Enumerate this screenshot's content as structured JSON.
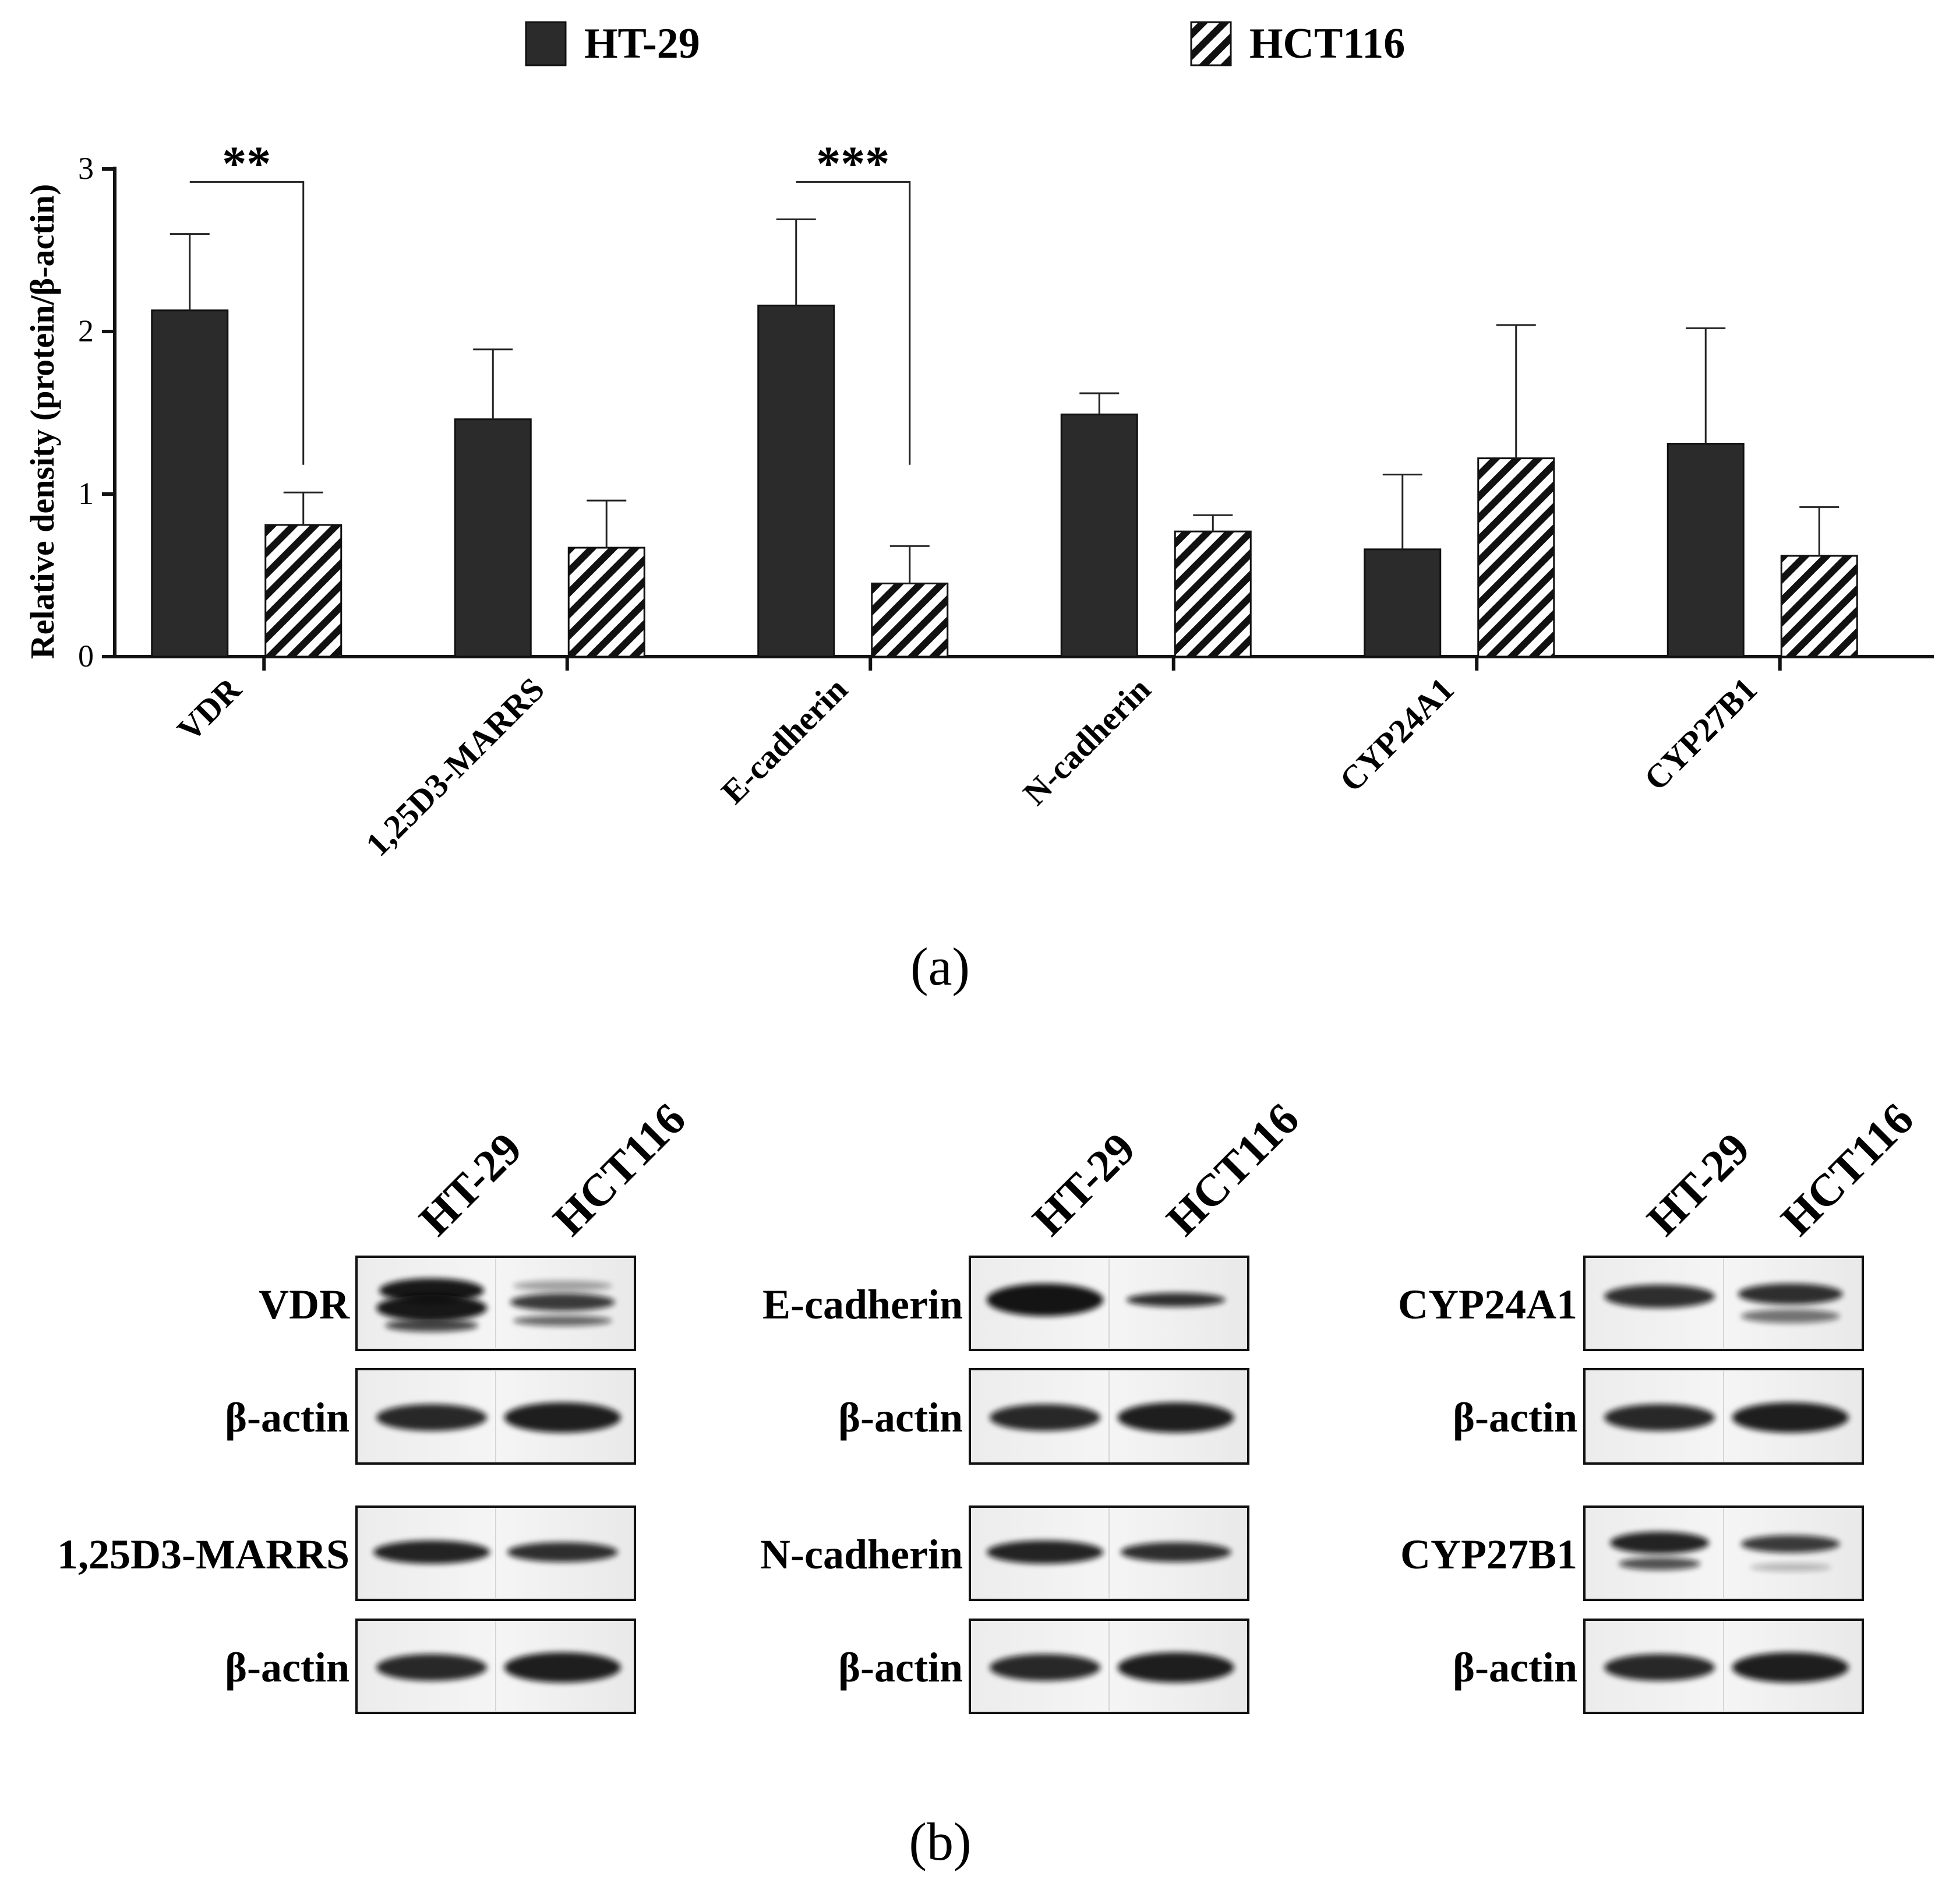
{
  "chart_data": {
    "type": "bar",
    "ylabel": "Relative density (protein/β-actin)",
    "ylim": [
      0,
      3
    ],
    "yticks": [
      "0",
      "1",
      "2",
      "3"
    ],
    "categories": [
      "VDR",
      "1,25D3-MARRS",
      "E-cadherin",
      "N-cadherin",
      "CYP24A1",
      "CYP27B1"
    ],
    "series": [
      {
        "name": "HT-29",
        "pattern": "solid",
        "color": "#2b2b2b",
        "values": [
          2.13,
          1.46,
          2.16,
          1.49,
          0.66,
          1.31
        ],
        "errors": [
          0.47,
          0.43,
          0.53,
          0.13,
          0.46,
          0.71
        ]
      },
      {
        "name": "HCT116",
        "pattern": "hatched",
        "color": "#111111",
        "values": [
          0.81,
          0.67,
          0.45,
          0.77,
          1.22,
          0.62
        ],
        "errors": [
          0.2,
          0.29,
          0.23,
          0.1,
          0.82,
          0.3
        ]
      }
    ],
    "significance": [
      {
        "category": "VDR",
        "label": "**"
      },
      {
        "category": "E-cadherin",
        "label": "***"
      }
    ],
    "legend_position": "top-center"
  },
  "panel_a_label": "(a)",
  "panel_b_label": "(b)",
  "blot_lane_labels": [
    "HT-29",
    "HCT116"
  ],
  "blot_groups": [
    {
      "rows": [
        {
          "label": "VDR",
          "bands": "vdr"
        },
        {
          "label": "β-actin",
          "bands": "actin"
        },
        {
          "label": "1,25D3-MARRS",
          "bands": "single"
        },
        {
          "label": "β-actin",
          "bands": "actin"
        }
      ]
    },
    {
      "rows": [
        {
          "label": "E-cadherin",
          "bands": "ecad"
        },
        {
          "label": "β-actin",
          "bands": "actin"
        },
        {
          "label": "N-cadherin",
          "bands": "single"
        },
        {
          "label": "β-actin",
          "bands": "actin"
        }
      ]
    },
    {
      "rows": [
        {
          "label": "CYP24A1",
          "bands": "cyp24"
        },
        {
          "label": "β-actin",
          "bands": "actin"
        },
        {
          "label": "CYP27B1",
          "bands": "cyp27"
        },
        {
          "label": "β-actin",
          "bands": "actin"
        }
      ]
    }
  ]
}
